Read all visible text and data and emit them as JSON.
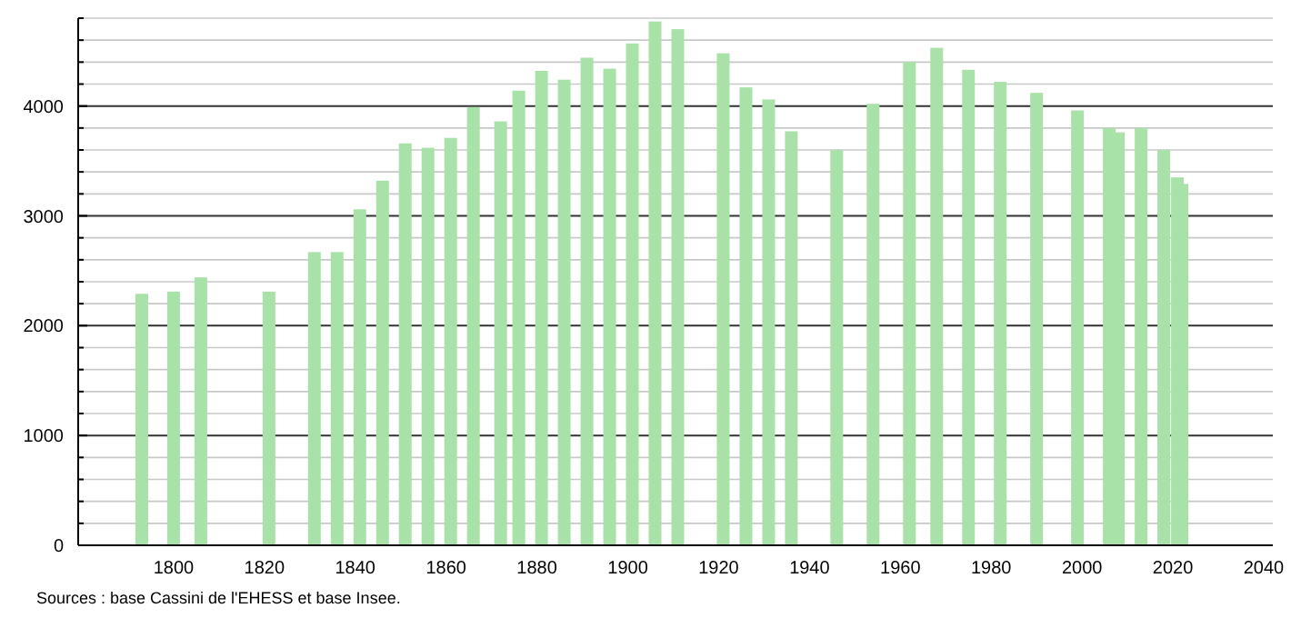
{
  "chart_data": {
    "type": "bar",
    "x": [
      1793,
      1800,
      1806,
      1821,
      1831,
      1836,
      1841,
      1846,
      1851,
      1856,
      1861,
      1866,
      1872,
      1876,
      1881,
      1886,
      1891,
      1896,
      1901,
      1906,
      1911,
      1921,
      1926,
      1931,
      1936,
      1946,
      1954,
      1962,
      1968,
      1975,
      1982,
      1990,
      1999,
      2006,
      2008,
      2013,
      2018,
      2021,
      2022
    ],
    "values": [
      2290,
      2310,
      2440,
      2310,
      2670,
      2670,
      3060,
      3320,
      3660,
      3620,
      3710,
      3990,
      3860,
      4140,
      4320,
      4240,
      4440,
      4340,
      4570,
      4770,
      4700,
      4480,
      4170,
      4060,
      3770,
      3600,
      4020,
      4400,
      4530,
      4330,
      4220,
      4120,
      3960,
      3800,
      3760,
      3800,
      3600,
      3350,
      3290
    ],
    "color": "#a8e2a8",
    "xlim": [
      1779,
      2042
    ],
    "xticks": [
      1800,
      1820,
      1840,
      1860,
      1880,
      1900,
      1920,
      1940,
      1960,
      1980,
      2000,
      2020,
      2040
    ],
    "ylim": [
      0,
      4800
    ],
    "yticks": [
      0,
      {
        "value": 200,
        "label": null
      },
      {
        "value": 400,
        "label": null
      },
      {
        "value": 600,
        "label": null
      },
      {
        "value": 800,
        "label": null
      },
      1000,
      {
        "value": 1200,
        "label": null
      },
      {
        "value": 1400,
        "label": null
      },
      {
        "value": 1600,
        "label": null
      },
      {
        "value": 1800,
        "label": null
      },
      2000,
      {
        "value": 2200,
        "label": null
      },
      {
        "value": 2400,
        "label": null
      },
      {
        "value": 2600,
        "label": null
      },
      {
        "value": 2800,
        "label": null
      },
      3000,
      {
        "value": 3200,
        "label": null
      },
      {
        "value": 3400,
        "label": null
      },
      {
        "value": 3600,
        "label": null
      },
      {
        "value": 3800,
        "label": null
      },
      4000,
      {
        "value": 4200,
        "label": null
      },
      {
        "value": 4400,
        "label": null
      },
      {
        "value": 4600,
        "label": null
      },
      {
        "value": 4800,
        "label": null
      }
    ],
    "grid": "y",
    "annotations": [
      "Sources : base Cassini de l'EHESS et base Insee."
    ]
  }
}
